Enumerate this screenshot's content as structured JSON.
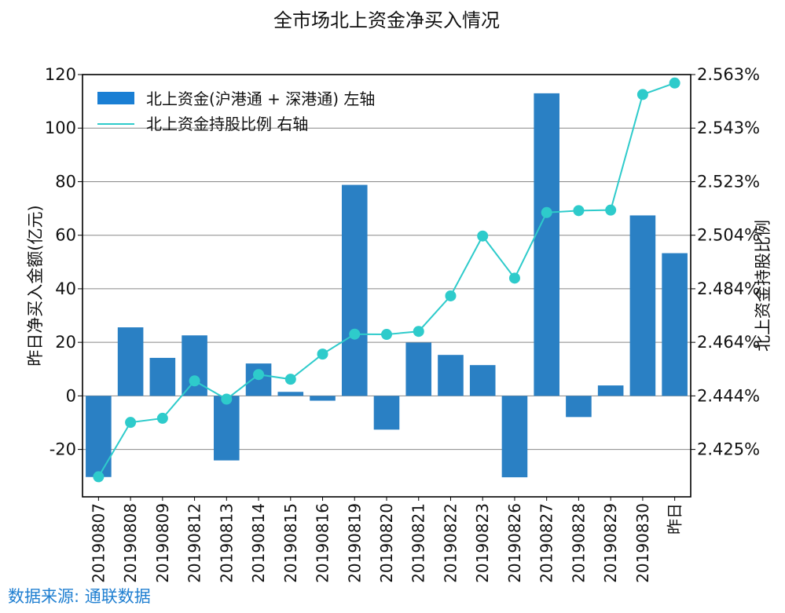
{
  "chart_data": {
    "type": "bar+line",
    "title": "全市场北上资金净买入情况",
    "categories": [
      "20190807",
      "20190808",
      "20190809",
      "20190812",
      "20190813",
      "20190814",
      "20190815",
      "20190816",
      "20190819",
      "20190820",
      "20190821",
      "20190822",
      "20190823",
      "20190826",
      "20190827",
      "20190828",
      "20190829",
      "20190830",
      "昨日"
    ],
    "series": [
      {
        "name": "北上资金(沪港通 + 深港通) 左轴",
        "type": "bar",
        "axis": "left",
        "color": "#2a80c4",
        "values": [
          -30.3,
          25.6,
          14.2,
          22.6,
          -24.1,
          12.1,
          1.5,
          -1.8,
          78.8,
          -12.6,
          19.9,
          15.3,
          11.5,
          -30.4,
          113.0,
          -7.9,
          3.9,
          67.4,
          53.3
        ]
      },
      {
        "name": "北上资金持股比例 右轴",
        "type": "line",
        "axis": "right",
        "color": "#2ecbcb",
        "values": [
          2.4146,
          2.4345,
          2.436,
          2.4497,
          2.443,
          2.452,
          2.4503,
          2.4595,
          2.4668,
          2.4667,
          2.4678,
          2.4808,
          2.5027,
          2.4873,
          2.5113,
          2.512,
          2.5122,
          2.5545,
          2.5587
        ]
      }
    ],
    "ylabel": "昨日净买入金额(亿元)",
    "y2label": "北上资金持股比例",
    "ylim": [
      -37.7,
      120
    ],
    "yticks": [
      -20,
      0,
      20,
      40,
      60,
      80,
      100,
      120
    ],
    "ytick_labels": [
      "-20",
      "0",
      "20",
      "40",
      "60",
      "80",
      "100",
      "120"
    ],
    "y2ticks": [
      2.425,
      2.444,
      2.464,
      2.484,
      2.504,
      2.523,
      2.543,
      2.563
    ],
    "y2tick_labels": [
      "2.425%",
      "2.444%",
      "2.464%",
      "2.484%",
      "2.504%",
      "2.523%",
      "2.543%",
      "2.563%"
    ],
    "grid": true,
    "legend": "top-left"
  },
  "source": "数据来源: 通联数据"
}
